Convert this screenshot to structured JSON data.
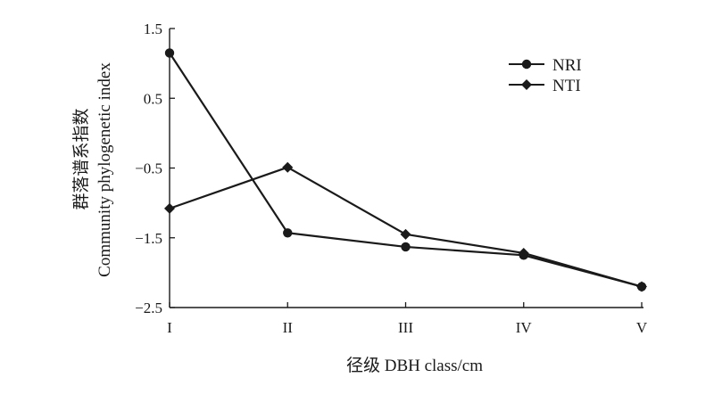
{
  "chart_data": {
    "type": "line",
    "categories": [
      "I",
      "II",
      "III",
      "IV",
      "V"
    ],
    "xlabel": "径级 DBH class/cm",
    "ylabel_zh": "群落谱系指数",
    "ylabel_en": "Community phylogenetic index",
    "ylim": [
      -2.5,
      1.5
    ],
    "yticks": [
      1.5,
      0.5,
      -0.5,
      -1.5,
      -2.5
    ],
    "ytick_labels": [
      "1.5",
      "0.5",
      "−0.5",
      "−1.5",
      "−2.5"
    ],
    "legend_position": "top-right",
    "series": [
      {
        "name": "NRI",
        "marker": "circle",
        "values": [
          1.15,
          -1.43,
          -1.63,
          -1.75,
          -2.2
        ]
      },
      {
        "name": "NTI",
        "marker": "diamond",
        "values": [
          -1.08,
          -0.49,
          -1.45,
          -1.72,
          -2.2
        ]
      }
    ]
  },
  "colors": {
    "line": "#1a1a1a",
    "background": "#ffffff"
  }
}
